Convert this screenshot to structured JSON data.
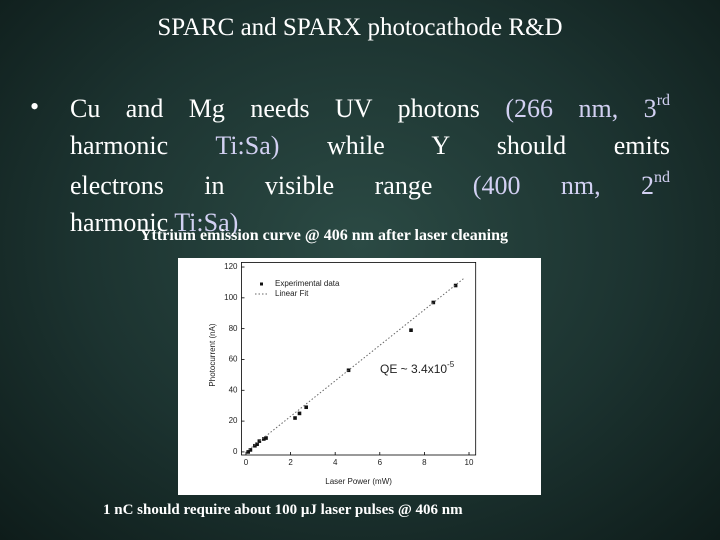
{
  "title": "SPARC and SPARX photocathode R&D",
  "bullet": [
    [
      "Cu and Mg needs UV photons",
      "(266 nm, 3",
      "rd"
    ],
    [
      "harmonic",
      "Ti:Sa)",
      "while Y should emits"
    ],
    [
      "electrons in visible range",
      "(400 nm, 2",
      "nd"
    ],
    [
      "harmonic",
      "Ti:Sa)"
    ]
  ],
  "caption": "Yttrium emission curve @ 406 nm after laser cleaning",
  "footer": "1 nC should require about 100 μJ laser pulses @ 406 nm",
  "chart_data": {
    "type": "scatter",
    "x_label": "Laser Power (mW)",
    "y_label": "Photocurrent (nA)",
    "annotation": [
      "QE ~ 3.4x10",
      "-5"
    ],
    "xlim": [
      -0.2,
      10.3
    ],
    "ylim": [
      -2,
      123
    ],
    "xticks": [
      0,
      2,
      4,
      6,
      8,
      10
    ],
    "yticks": [
      0,
      20,
      40,
      60,
      80,
      100,
      120
    ],
    "series": [
      {
        "name": "Experimental data",
        "color": "#111111",
        "x": [
          0.1,
          0.2,
          0.4,
          0.5,
          0.6,
          0.8,
          0.9,
          2.2,
          2.4,
          2.7,
          4.6,
          7.4,
          8.4,
          9.4
        ],
        "values": [
          0,
          1.3,
          4,
          5,
          7,
          8.4,
          9,
          22,
          25,
          29,
          53,
          79,
          97,
          108
        ]
      },
      {
        "name": "Linear Fit",
        "color": "#666666",
        "x": [
          0,
          9.8
        ],
        "values": [
          0,
          113
        ]
      }
    ]
  }
}
